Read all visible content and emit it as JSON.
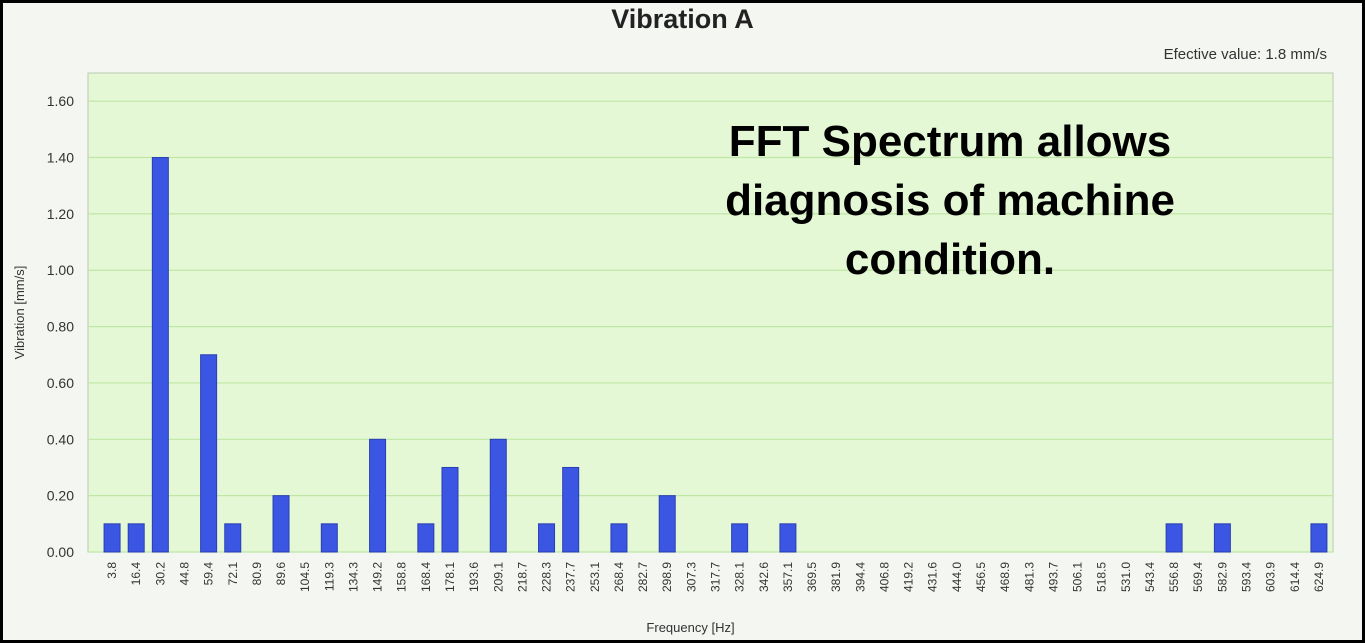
{
  "chart_data": {
    "type": "bar",
    "title": "Vibration A",
    "subtitle": "Efective value: 1.8 mm/s",
    "xlabel": "Frequency [Hz]",
    "ylabel": "Vibration [mm/s]",
    "ylim": [
      0,
      1.7
    ],
    "yticks": [
      "0.00",
      "0.20",
      "0.40",
      "0.60",
      "0.80",
      "1.00",
      "1.20",
      "1.40",
      "1.60"
    ],
    "grid": true,
    "annotation": [
      "FFT Spectrum allows",
      "diagnosis of machine",
      "condition."
    ],
    "colors": {
      "bar": "#3b56e3",
      "bar_edge": "#2a3fb0",
      "plot_bg": "#e5f8d6",
      "grid": "#bfe6a4"
    },
    "categories": [
      "3.8",
      "16.4",
      "30.2",
      "44.8",
      "59.4",
      "72.1",
      "80.9",
      "89.6",
      "104.5",
      "119.3",
      "134.3",
      "149.2",
      "158.8",
      "168.4",
      "178.1",
      "193.6",
      "209.1",
      "218.7",
      "228.3",
      "237.7",
      "253.1",
      "268.4",
      "282.7",
      "298.9",
      "307.3",
      "317.7",
      "328.1",
      "342.6",
      "357.1",
      "369.5",
      "381.9",
      "394.4",
      "406.8",
      "419.2",
      "431.6",
      "444.0",
      "456.5",
      "468.9",
      "481.3",
      "493.7",
      "506.1",
      "518.5",
      "531.0",
      "543.4",
      "556.8",
      "569.4",
      "582.9",
      "593.4",
      "603.9",
      "614.4",
      "624.9"
    ],
    "values": [
      0.1,
      0.1,
      1.4,
      0,
      0.7,
      0.1,
      0,
      0.2,
      0,
      0.1,
      0,
      0.4,
      0,
      0.1,
      0.3,
      0,
      0.4,
      0,
      0.1,
      0.3,
      0,
      0.1,
      0,
      0.2,
      0,
      0,
      0.1,
      0,
      0.1,
      0,
      0,
      0,
      0,
      0,
      0,
      0,
      0,
      0,
      0,
      0,
      0,
      0,
      0,
      0,
      0.1,
      0,
      0.1,
      0,
      0,
      0,
      0.1
    ]
  }
}
